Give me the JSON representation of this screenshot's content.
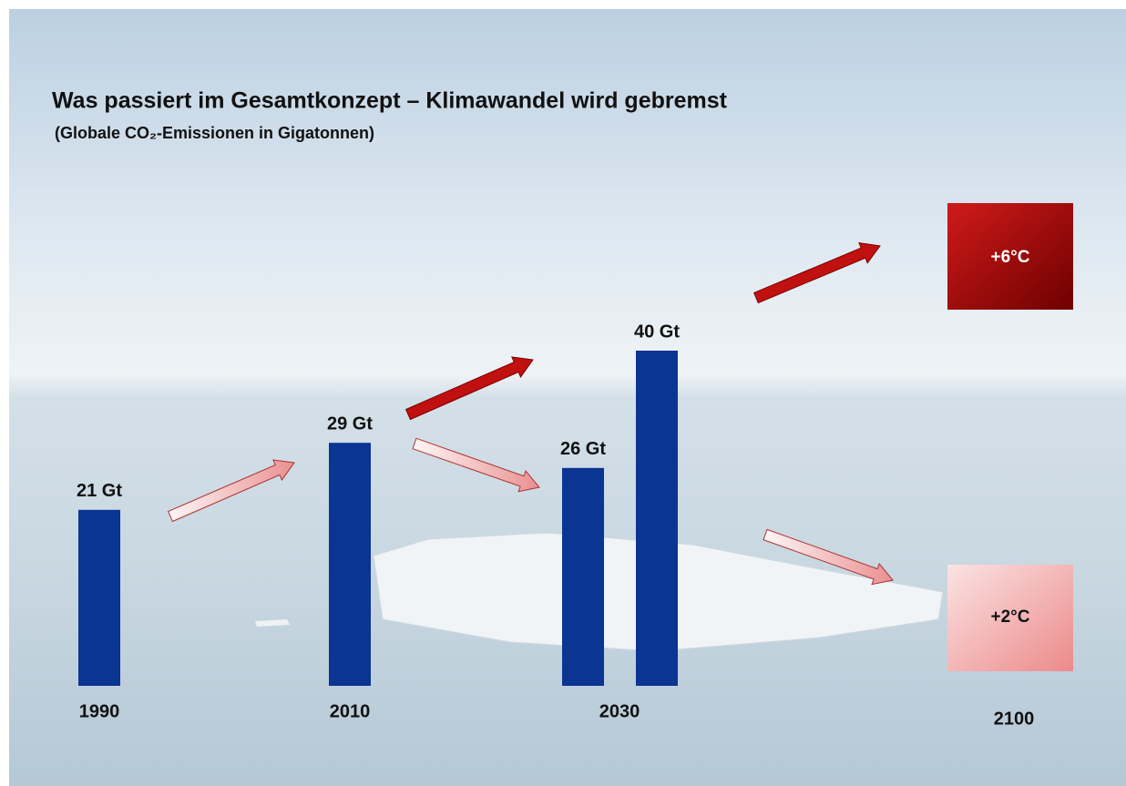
{
  "chart_data": {
    "type": "bar",
    "title": "Was passiert im Gesamtkonzept – Klimawandel wird gebremst",
    "subtitle": "(Globale CO₂-Emissionen in Gigatonnen)",
    "categories": [
      "1990",
      "2010",
      "2030",
      "2100"
    ],
    "series": [
      {
        "color": "#0a3592",
        "values": [
          21,
          29,
          26,
          null
        ],
        "value_labels": [
          "21 Gt",
          "29 Gt",
          "26 Gt",
          null
        ]
      },
      {
        "color": "#0a3592",
        "values": [
          null,
          null,
          40,
          null
        ],
        "value_labels": [
          null,
          null,
          "40 Gt",
          null
        ]
      }
    ],
    "annotations": [
      "+6°C",
      "+2°C"
    ]
  }
}
